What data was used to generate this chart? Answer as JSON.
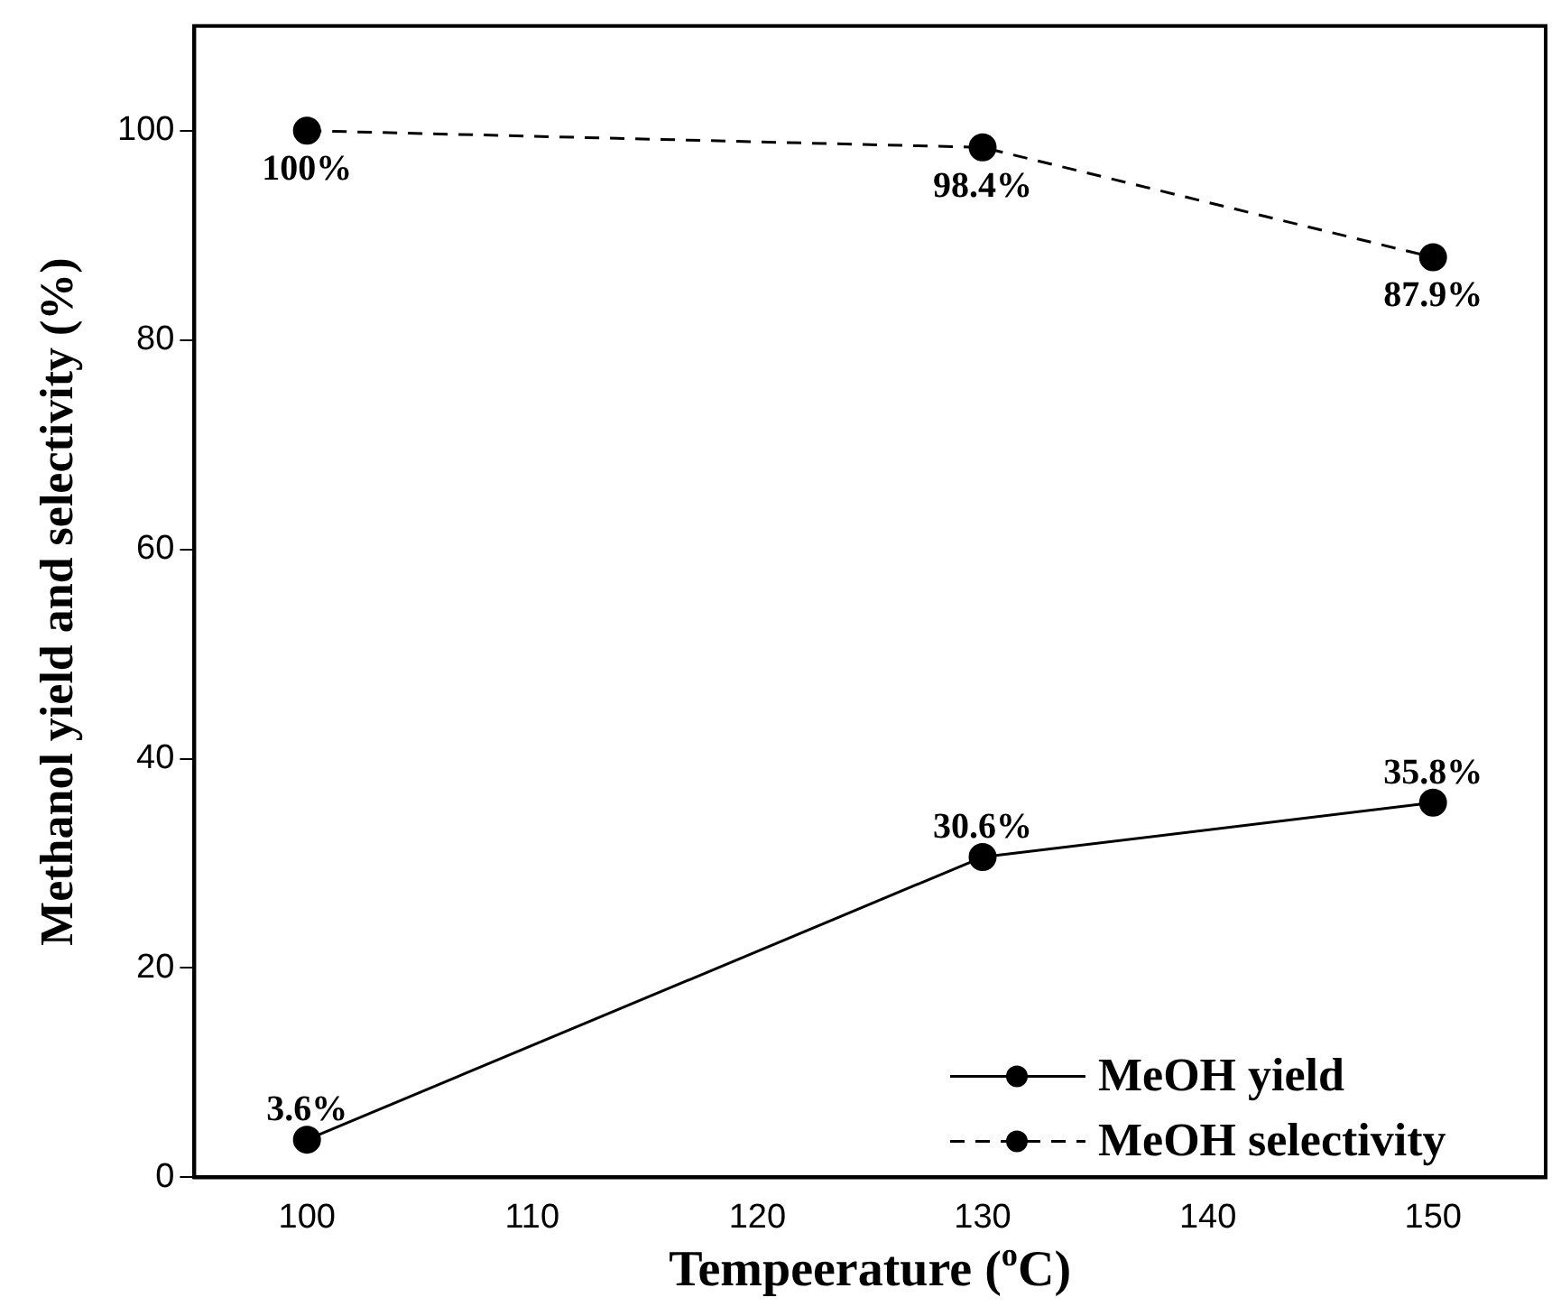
{
  "chart_data": {
    "type": "line",
    "xlabel": "Tempeerature ($^{o}$C)",
    "ylabel": "Methanol yield and selectivity (%)",
    "x": [
      100,
      130,
      150
    ],
    "series": [
      {
        "name": "MeOH yield",
        "color": "#000000",
        "values": [
          3.6,
          30.6,
          35.8
        ],
        "value_labels": [
          "3.6%",
          "30.6%",
          "35.8%"
        ],
        "line_style": "solid"
      },
      {
        "name": "MeOH selectivity",
        "color": "#000000",
        "values": [
          100,
          98.4,
          87.9
        ],
        "value_labels": [
          "100%",
          "98.4%",
          "87.9%"
        ],
        "line_style": "dashed"
      }
    ],
    "xlim": [
      95,
      155
    ],
    "xticks": [
      100,
      110,
      120,
      130,
      140,
      150
    ],
    "ylim": [
      0,
      110
    ],
    "yticks": [
      0,
      20,
      40,
      60,
      80,
      100
    ],
    "marker": "circle",
    "legend": "bottom right",
    "grid": false
  }
}
